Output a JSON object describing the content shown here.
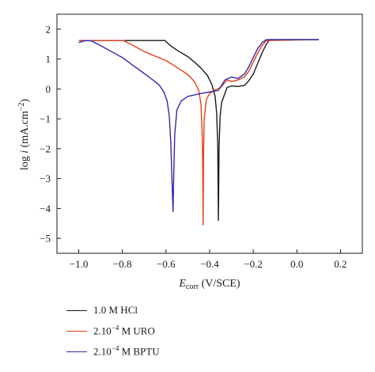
{
  "chart_data": {
    "type": "line",
    "xlabel": {
      "main": "E",
      "sub": "corr",
      "unit": " (V/SCE)"
    },
    "ylabel": {
      "pre": "log ",
      "var": "i",
      "unit": " (mA.cm",
      "sup": "−2",
      "post": ")"
    },
    "xlim": [
      -1.1,
      0.3
    ],
    "ylim": [
      -5.5,
      2.5
    ],
    "xticks": [
      -1.0,
      -0.8,
      -0.6,
      -0.4,
      -0.2,
      0.0,
      0.2
    ],
    "xtick_labels": [
      "−1.0",
      "−0.8",
      "−0.6",
      "−0.4",
      "−0.2",
      "0.0",
      "0.2"
    ],
    "yticks": [
      2,
      1,
      0,
      -1,
      -2,
      -3,
      -4,
      -5
    ],
    "ytick_labels": [
      "2",
      "1",
      "0",
      "−1",
      "−2",
      "−3",
      "−4",
      "−5"
    ],
    "series": [
      {
        "name": "1.0 M HCl",
        "color": "#1a1a1a",
        "points": [
          [
            -1.0,
            1.62
          ],
          [
            -0.9,
            1.62
          ],
          [
            -0.8,
            1.62
          ],
          [
            -0.7,
            1.62
          ],
          [
            -0.605,
            1.62
          ],
          [
            -0.58,
            1.45
          ],
          [
            -0.55,
            1.3
          ],
          [
            -0.5,
            1.08
          ],
          [
            -0.47,
            0.9
          ],
          [
            -0.44,
            0.7
          ],
          [
            -0.41,
            0.45
          ],
          [
            -0.39,
            0.15
          ],
          [
            -0.375,
            -0.25
          ],
          [
            -0.368,
            -0.8
          ],
          [
            -0.363,
            -1.8
          ],
          [
            -0.36,
            -4.4
          ],
          [
            -0.357,
            -2.0
          ],
          [
            -0.352,
            -0.9
          ],
          [
            -0.345,
            -0.45
          ],
          [
            -0.335,
            -0.25
          ],
          [
            -0.32,
            0.05
          ],
          [
            -0.3,
            0.1
          ],
          [
            -0.27,
            0.08
          ],
          [
            -0.24,
            0.12
          ],
          [
            -0.22,
            0.28
          ],
          [
            -0.2,
            0.5
          ],
          [
            -0.18,
            0.85
          ],
          [
            -0.16,
            1.2
          ],
          [
            -0.14,
            1.5
          ],
          [
            -0.125,
            1.65
          ],
          [
            0.1,
            1.65
          ]
        ]
      },
      {
        "name": "2.10−4 M URO",
        "color": "#e2401a",
        "points": [
          [
            -1.0,
            1.62
          ],
          [
            -0.9,
            1.62
          ],
          [
            -0.795,
            1.62
          ],
          [
            -0.75,
            1.45
          ],
          [
            -0.7,
            1.25
          ],
          [
            -0.6,
            0.95
          ],
          [
            -0.55,
            0.72
          ],
          [
            -0.5,
            0.48
          ],
          [
            -0.47,
            0.25
          ],
          [
            -0.45,
            -0.05
          ],
          [
            -0.44,
            -0.5
          ],
          [
            -0.435,
            -1.3
          ],
          [
            -0.432,
            -2.4
          ],
          [
            -0.43,
            -4.55
          ],
          [
            -0.428,
            -2.2
          ],
          [
            -0.425,
            -1.0
          ],
          [
            -0.415,
            -0.35
          ],
          [
            -0.4,
            -0.15
          ],
          [
            -0.38,
            -0.05
          ],
          [
            -0.35,
            0.05
          ],
          [
            -0.32,
            0.3
          ],
          [
            -0.3,
            0.25
          ],
          [
            -0.27,
            0.3
          ],
          [
            -0.24,
            0.4
          ],
          [
            -0.22,
            0.6
          ],
          [
            -0.2,
            0.9
          ],
          [
            -0.18,
            1.2
          ],
          [
            -0.16,
            1.45
          ],
          [
            -0.14,
            1.62
          ],
          [
            0.1,
            1.65
          ]
        ]
      },
      {
        "name": "2.10−4 M BPTU",
        "color": "#2f2aa8",
        "points": [
          [
            -1.0,
            1.55
          ],
          [
            -0.98,
            1.6
          ],
          [
            -0.96,
            1.62
          ],
          [
            -0.94,
            1.6
          ],
          [
            -0.9,
            1.45
          ],
          [
            -0.85,
            1.25
          ],
          [
            -0.8,
            1.05
          ],
          [
            -0.75,
            0.78
          ],
          [
            -0.7,
            0.52
          ],
          [
            -0.66,
            0.3
          ],
          [
            -0.63,
            0.12
          ],
          [
            -0.61,
            -0.1
          ],
          [
            -0.595,
            -0.4
          ],
          [
            -0.585,
            -0.9
          ],
          [
            -0.578,
            -1.8
          ],
          [
            -0.572,
            -3.2
          ],
          [
            -0.568,
            -4.1
          ],
          [
            -0.565,
            -3.0
          ],
          [
            -0.56,
            -1.5
          ],
          [
            -0.55,
            -0.7
          ],
          [
            -0.53,
            -0.4
          ],
          [
            -0.5,
            -0.25
          ],
          [
            -0.47,
            -0.2
          ],
          [
            -0.44,
            -0.15
          ],
          [
            -0.4,
            -0.1
          ],
          [
            -0.36,
            -0.05
          ],
          [
            -0.33,
            0.3
          ],
          [
            -0.3,
            0.4
          ],
          [
            -0.27,
            0.35
          ],
          [
            -0.24,
            0.5
          ],
          [
            -0.22,
            0.75
          ],
          [
            -0.2,
            1.05
          ],
          [
            -0.18,
            1.35
          ],
          [
            -0.16,
            1.55
          ],
          [
            -0.14,
            1.65
          ],
          [
            0.1,
            1.65
          ]
        ]
      }
    ],
    "legend": {
      "placement": "bottom-left",
      "items": [
        {
          "text": "1.0 M HCl",
          "color": "#1a1a1a"
        },
        {
          "base": "2.10",
          "sup": "−4",
          "rest": " M URO",
          "color": "#e2401a"
        },
        {
          "base": "2.10",
          "sup": "−4",
          "rest": " M BPTU",
          "color": "#2f2aa8"
        }
      ]
    }
  }
}
